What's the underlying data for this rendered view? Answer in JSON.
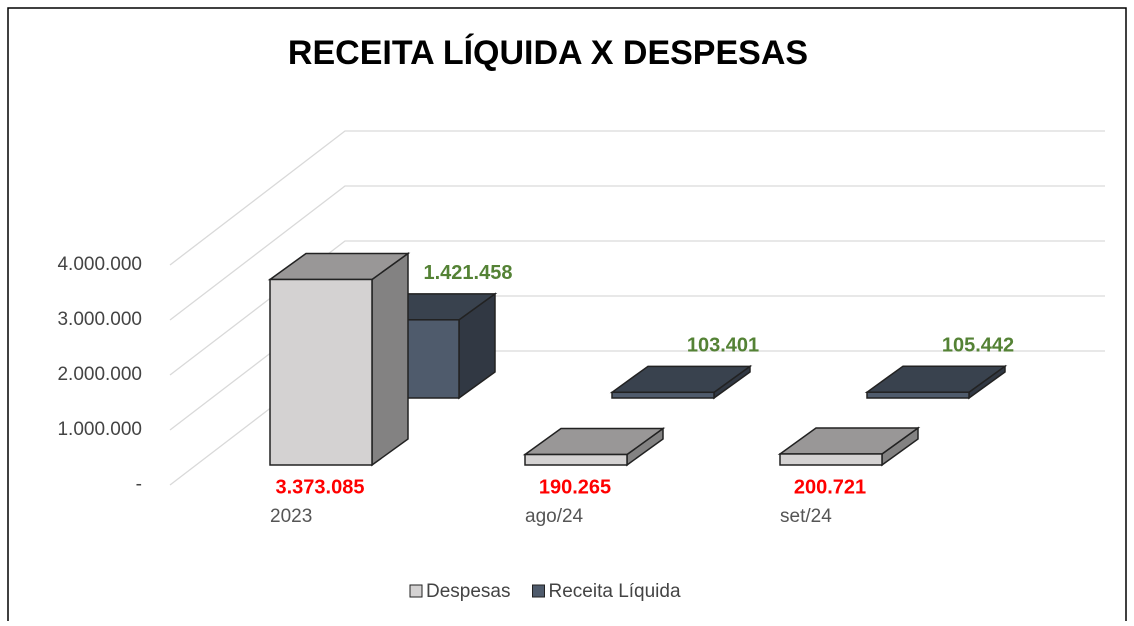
{
  "chart_data": {
    "type": "bar3d",
    "title": "RECEITA LÍQUIDA X DESPESAS",
    "categories": [
      "2023",
      "ago/24",
      "set/24"
    ],
    "series": [
      {
        "name": "Despesas",
        "color": "#d4d2d2",
        "values": [
          3373085,
          190265,
          200721
        ],
        "value_labels": [
          "3.373.085",
          "190.265",
          "200.721"
        ],
        "label_color": "#ff0000"
      },
      {
        "name": "Receita Líquida",
        "color": "#4f5b6c",
        "values": [
          1421458,
          103401,
          105442
        ],
        "value_labels": [
          "1.421.458",
          "103.401",
          "105.442"
        ],
        "label_color": "#548235"
      }
    ],
    "ylim": [
      0,
      4000000
    ],
    "yticks": [
      {
        "value": 0,
        "label": "-"
      },
      {
        "value": 1000000,
        "label": "1.000.000"
      },
      {
        "value": 2000000,
        "label": "2.000.000"
      },
      {
        "value": 3000000,
        "label": "3.000.000"
      },
      {
        "value": 4000000,
        "label": "4.000.000"
      }
    ],
    "grid": true,
    "legend": "bottom"
  }
}
